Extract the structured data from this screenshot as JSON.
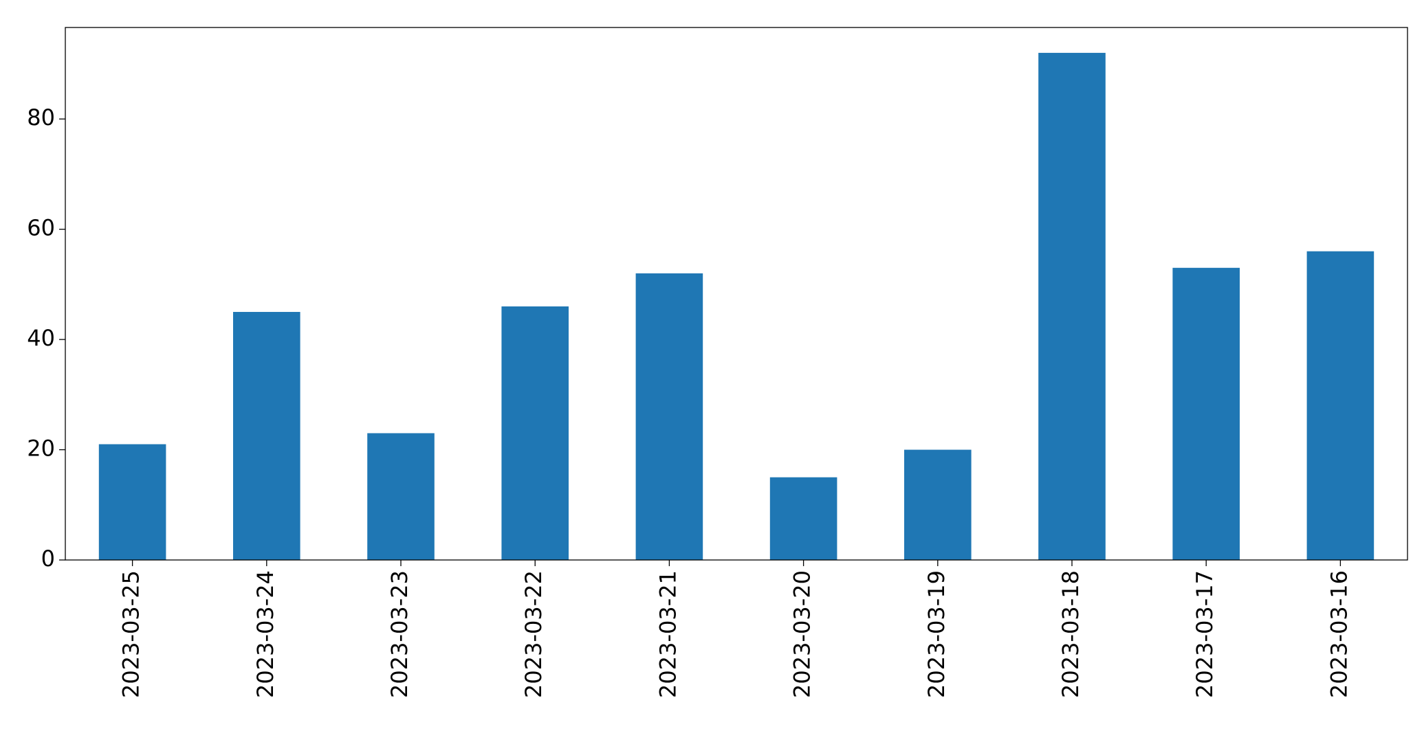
{
  "chart_data": {
    "type": "bar",
    "categories": [
      "2023-03-25",
      "2023-03-24",
      "2023-03-23",
      "2023-03-22",
      "2023-03-21",
      "2023-03-20",
      "2023-03-19",
      "2023-03-18",
      "2023-03-17",
      "2023-03-16"
    ],
    "values": [
      21,
      45,
      23,
      46,
      52,
      15,
      20,
      92,
      53,
      56
    ],
    "color": "#1f77b4",
    "ylim": [
      0,
      96.6
    ],
    "yticks": [
      0,
      20,
      40,
      60,
      80
    ],
    "grid": false
  }
}
